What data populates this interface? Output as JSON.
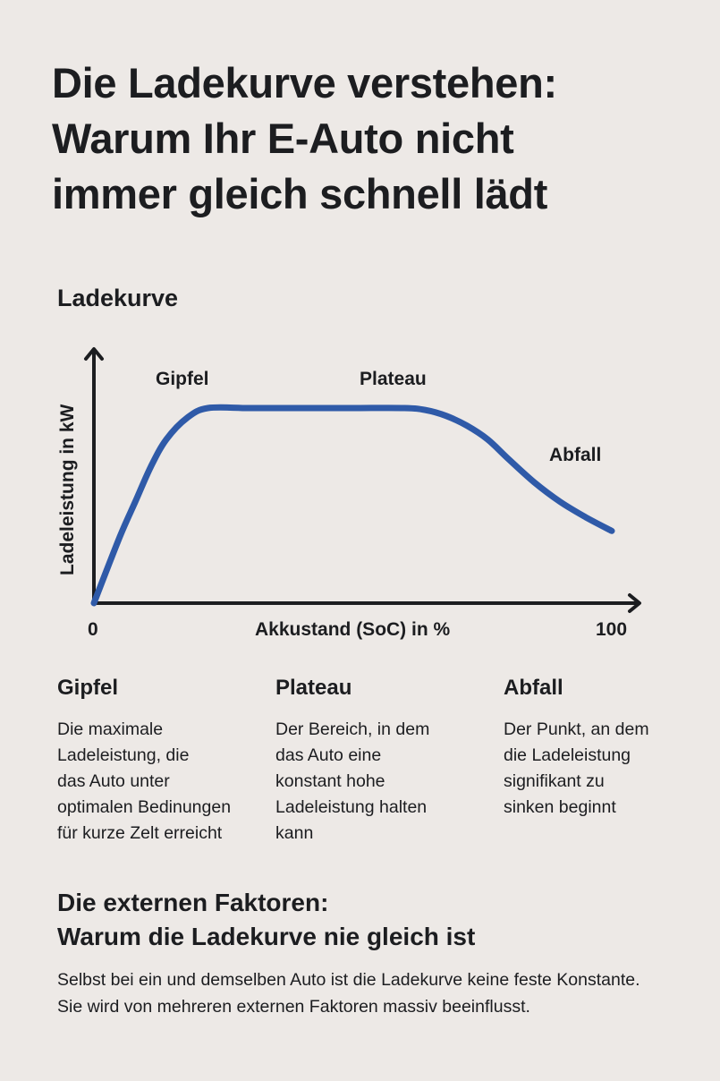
{
  "header": {
    "title_line1": "Die Ladekurve verstehen:",
    "title_line2": "Warum Ihr E-Auto nicht",
    "title_line3": "immer gleich schnell lädt"
  },
  "chart_section": {
    "title": "Ladekurve",
    "y_axis_label": "Ladeleistung in kW",
    "x_axis_label": "Akkustand (SoC) in %",
    "x_tick_min": "0",
    "x_tick_max": "100",
    "annotations": {
      "peak": "Gipfel",
      "plateau": "Plateau",
      "drop": "Abfall"
    },
    "colors": {
      "curve": "#2f5aa8",
      "axis": "#1c1d20",
      "background": "#ede9e6"
    }
  },
  "chart_data": {
    "type": "line",
    "title": "Ladekurve",
    "xlabel": "Akkustand (SoC) in %",
    "ylabel": "Ladeleistung in kW",
    "xlim": [
      0,
      100
    ],
    "ylim": [
      0,
      130
    ],
    "y_units_note": "relative (axis unlabeled; plateau = 100)",
    "grid": false,
    "legend": "none",
    "x_ticks": [
      "0",
      "100"
    ],
    "series": [
      {
        "name": "Ladekurve",
        "color": "#2f5aa8",
        "x": [
          0,
          5,
          8,
          11,
          14,
          18,
          22,
          30,
          40,
          50,
          60,
          64,
          68,
          72,
          76,
          80,
          85,
          90,
          95,
          100
        ],
        "y": [
          0,
          34,
          52,
          70,
          84,
          95,
          100,
          100,
          100,
          100,
          100,
          99,
          96,
          91,
          84,
          74,
          62,
          52,
          44,
          37
        ]
      }
    ],
    "annotations": [
      {
        "text": "Gipfel",
        "x": 16,
        "y": 112
      },
      {
        "text": "Plateau",
        "x": 52,
        "y": 112
      },
      {
        "text": "Abfall",
        "x": 89,
        "y": 77
      }
    ]
  },
  "definitions": [
    {
      "term": "Gipfel",
      "text": "Die maximale\nLadeleistung, die\ndas Auto unter\noptimalen Bedinungen\nfür kurze Zelt erreicht"
    },
    {
      "term": "Plateau",
      "text": "Der Bereich, in dem\ndas Auto eine\nkonstant hohe\nLadeleistung halten\nkann"
    },
    {
      "term": "Abfall",
      "text": "Der Punkt, an dem\ndie Ladeleistung\nsignifikant zu\nsinken beginnt"
    }
  ],
  "factors": {
    "heading_line1": "Die externen Faktoren:",
    "heading_line2": "Warum die Ladekurve nie gleich ist",
    "body": "Selbst bei ein und demselben Auto ist die Ladekurve keine feste Konstante. Sie wird von mehreren externen Faktoren massiv beeinflusst."
  }
}
